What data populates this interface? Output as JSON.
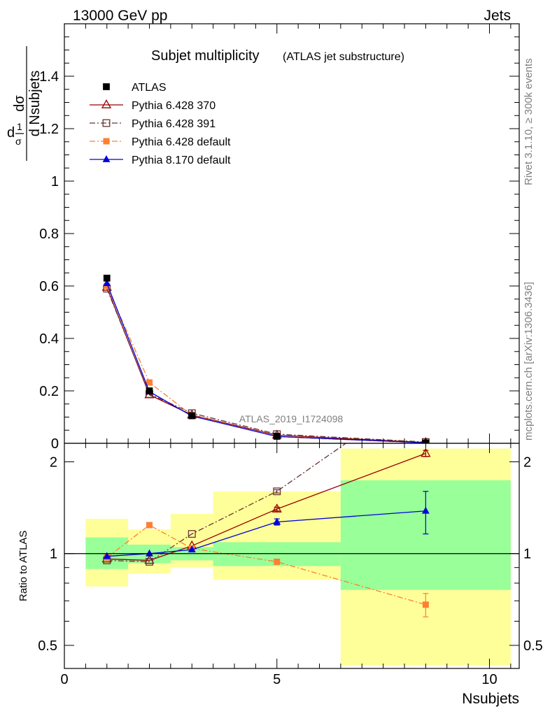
{
  "header": {
    "left": "13000 GeV pp",
    "right": "Jets"
  },
  "side_labels": {
    "rivet": "Rivet 3.1.10, ≥ 300k events",
    "mcplots": "mcplots.cern.ch [arXiv:1306.3436]"
  },
  "chart_data": {
    "type": "scatter",
    "title": "Subjet multiplicity",
    "subtitle": "(ATLAS jet substructure)",
    "watermark": "ATLAS_2019_I1724098",
    "xlabel": "Nsubjets",
    "ylabel_main": {
      "factor_num": "1",
      "factor_den": "σ",
      "deriv_num": "dσ",
      "deriv_den": "d Nsubjets",
      "prefix": "d"
    },
    "ylabel_ratio": "Ratio to ATLAS",
    "xlim": [
      0,
      10.7
    ],
    "xticks": [
      "0",
      "5",
      "10"
    ],
    "ylim_main": [
      0,
      1.6
    ],
    "yticks_main": [
      "0",
      "0.2",
      "0.4",
      "0.6",
      "0.8",
      "1",
      "1.2",
      "1.4"
    ],
    "ylim_ratio": [
      0.42,
      2.3
    ],
    "ratio_log": true,
    "yticks_ratio": [
      "0.5",
      "1",
      "2"
    ],
    "legend_position": "top-left",
    "data": {
      "name": "ATLAS",
      "x": [
        1,
        2,
        3,
        5,
        8.5
      ],
      "y": [
        0.63,
        0.2,
        0.105,
        0.027,
        0.0015
      ],
      "xlow": [
        0.5,
        1.5,
        2.5,
        3.5,
        6.5
      ],
      "xhigh": [
        1.5,
        2.5,
        3.5,
        6.5,
        10.5
      ],
      "band_inner_low": [
        0.89,
        0.93,
        0.95,
        0.91,
        0.76
      ],
      "band_inner_high": [
        1.13,
        1.07,
        1.05,
        1.09,
        1.74
      ],
      "band_outer_low": [
        0.78,
        0.86,
        0.9,
        0.82,
        0.43
      ],
      "band_outer_high": [
        1.3,
        1.2,
        1.35,
        1.6,
        2.21
      ]
    },
    "series": [
      {
        "name": "Pythia 6.428 370",
        "color": "#990000",
        "dash": "",
        "marker": "open-triangle",
        "y": [
          0.595,
          0.185,
          0.108,
          0.031,
          0.003
        ],
        "ratio": [
          0.96,
          0.95,
          1.06,
          1.4,
          2.13
        ],
        "ratio_err": [
          0.01,
          0.01,
          0.01,
          0.02,
          0.05
        ]
      },
      {
        "name": "Pythia 6.428 391",
        "color": "#663333",
        "dash": "8,3,2,3",
        "marker": "open-square",
        "y": [
          0.59,
          0.188,
          0.115,
          0.035,
          0.005
        ],
        "ratio": [
          0.95,
          0.94,
          1.16,
          1.6,
          3.5
        ],
        "ratio_err": [
          0.01,
          0.01,
          0.01,
          0.02,
          0.05
        ]
      },
      {
        "name": "Pythia 6.428 default",
        "color": "#ff7f32",
        "dash": "8,3,2,3",
        "marker": "filled-square",
        "y": [
          0.6,
          0.232,
          0.107,
          0.025,
          0.001
        ],
        "ratio": [
          0.97,
          1.24,
          1.04,
          0.94,
          0.68
        ],
        "ratio_err": [
          0.01,
          0.01,
          0.01,
          0.01,
          0.06
        ]
      },
      {
        "name": "Pythia 8.170 default",
        "color": "#0000dd",
        "dash": "",
        "marker": "filled-triangle",
        "y": [
          0.61,
          0.197,
          0.104,
          0.026,
          0.002
        ],
        "ratio": [
          0.98,
          1.0,
          1.03,
          1.27,
          1.38
        ],
        "ratio_err": [
          0.01,
          0.01,
          0.01,
          0.03,
          0.22
        ]
      }
    ]
  }
}
